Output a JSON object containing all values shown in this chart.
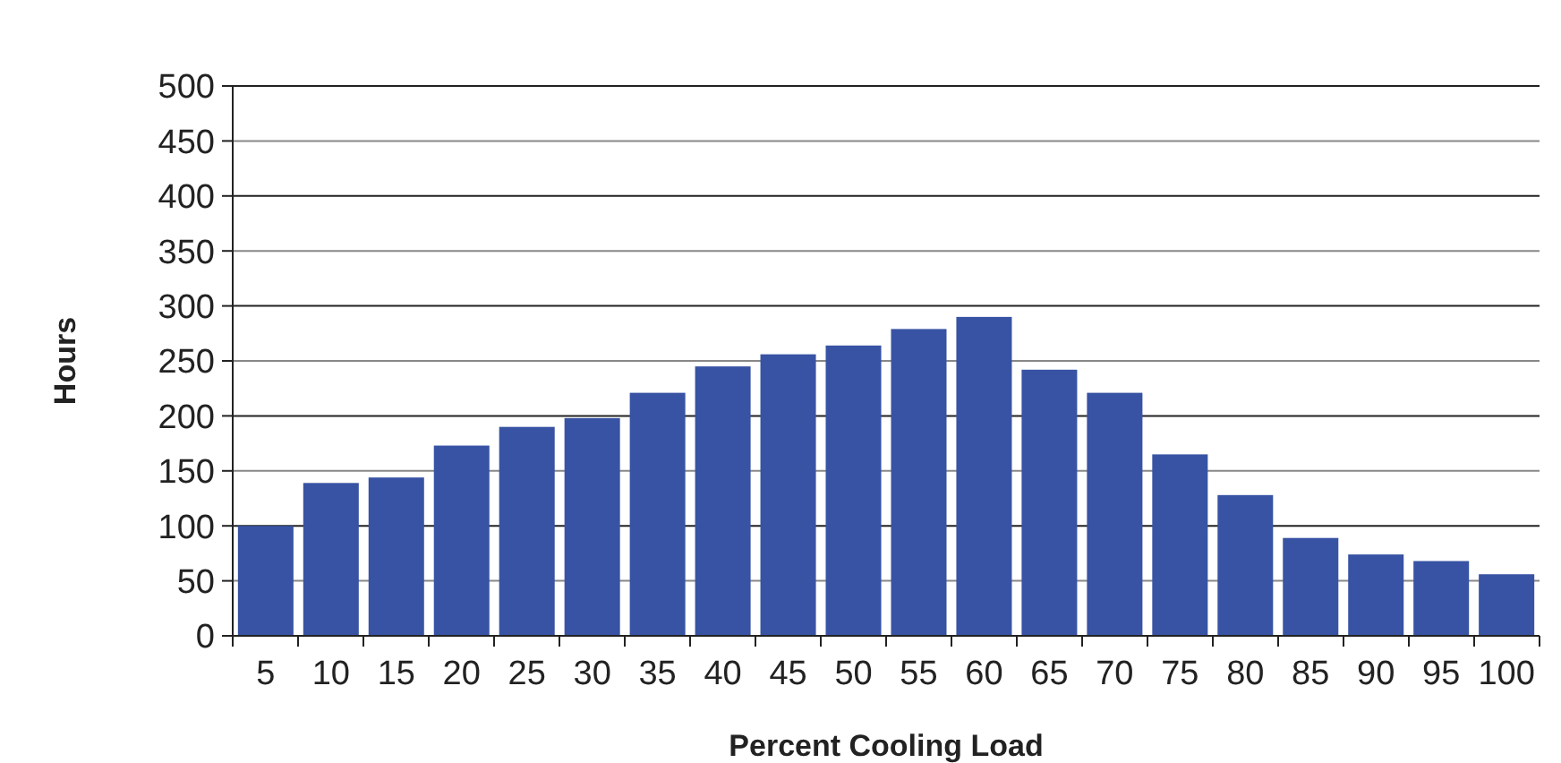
{
  "chart_data": {
    "type": "bar",
    "xlabel": "Percent Cooling Load",
    "ylabel": "Hours",
    "categories": [
      "5",
      "10",
      "15",
      "20",
      "25",
      "30",
      "35",
      "40",
      "45",
      "50",
      "55",
      "60",
      "65",
      "70",
      "75",
      "80",
      "85",
      "90",
      "95",
      "100"
    ],
    "values": [
      100,
      139,
      144,
      173,
      190,
      198,
      221,
      245,
      256,
      264,
      279,
      290,
      242,
      221,
      165,
      128,
      89,
      74,
      68,
      56
    ],
    "color": "#3853a4",
    "ylim": [
      0,
      500
    ],
    "yticks": [
      0,
      50,
      100,
      150,
      200,
      250,
      300,
      350,
      400,
      450,
      500
    ],
    "grid": "y"
  }
}
